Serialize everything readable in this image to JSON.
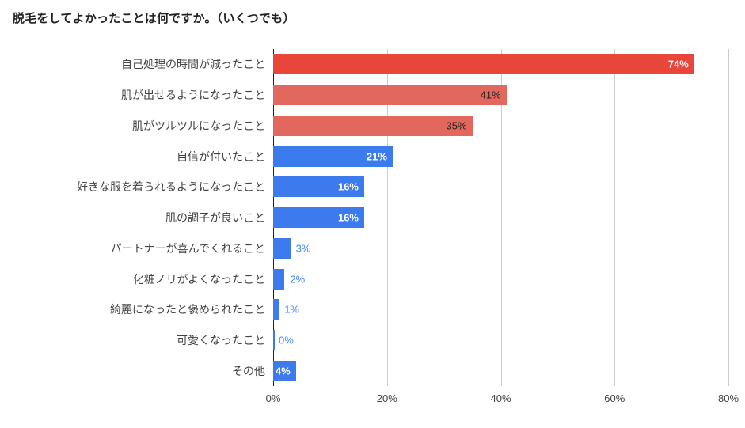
{
  "chart_data": {
    "type": "bar",
    "orientation": "horizontal",
    "title": "脱毛をしてよかったことは何ですか。（いくつでも）",
    "xlabel": "",
    "ylabel": "",
    "xlim": [
      0,
      80
    ],
    "grid": true,
    "legend_position": "none",
    "axis_color": "#212121",
    "gridline_color": "#cccccc",
    "tick_label_color": "#424242",
    "category_label_color": "#424242",
    "x_ticks": [
      {
        "value": 0,
        "label": "0%"
      },
      {
        "value": 20,
        "label": "20%"
      },
      {
        "value": 40,
        "label": "40%"
      },
      {
        "value": 60,
        "label": "60%"
      },
      {
        "value": 80,
        "label": "80%"
      }
    ],
    "bars": [
      {
        "category": "自己処理の時間が減ったこと",
        "value": 74,
        "label": "74%",
        "bar_color": "#e8463a",
        "label_color": "#ffffff",
        "label_weight": "bold",
        "label_position": "inside"
      },
      {
        "category": "肌が出せるようになったこと",
        "value": 41,
        "label": "41%",
        "bar_color": "#e2685d",
        "label_color": "#212121",
        "label_weight": "normal",
        "label_position": "inside"
      },
      {
        "category": "肌がツルツルになったこと",
        "value": 35,
        "label": "35%",
        "bar_color": "#e2685d",
        "label_color": "#212121",
        "label_weight": "normal",
        "label_position": "inside"
      },
      {
        "category": "自信が付いたこと",
        "value": 21,
        "label": "21%",
        "bar_color": "#3b7bed",
        "label_color": "#ffffff",
        "label_weight": "bold",
        "label_position": "inside"
      },
      {
        "category": "好きな服を着られるようになったこと",
        "value": 16,
        "label": "16%",
        "bar_color": "#3b7bed",
        "label_color": "#ffffff",
        "label_weight": "bold",
        "label_position": "inside"
      },
      {
        "category": "肌の調子が良いこと",
        "value": 16,
        "label": "16%",
        "bar_color": "#3b7bed",
        "label_color": "#ffffff",
        "label_weight": "bold",
        "label_position": "inside"
      },
      {
        "category": "パートナーが喜んでくれること",
        "value": 3,
        "label": "3%",
        "bar_color": "#3b7bed",
        "label_color": "#4285f4",
        "label_weight": "normal",
        "label_position": "outside"
      },
      {
        "category": "化粧ノリがよくなったこと",
        "value": 2,
        "label": "2%",
        "bar_color": "#3b7bed",
        "label_color": "#4285f4",
        "label_weight": "normal",
        "label_position": "outside"
      },
      {
        "category": "綺麗になったと褒められたこと",
        "value": 1,
        "label": "1%",
        "bar_color": "#3b7bed",
        "label_color": "#4285f4",
        "label_weight": "normal",
        "label_position": "outside"
      },
      {
        "category": "可愛くなったこと",
        "value": 0,
        "label": "0%",
        "bar_color": "#3b7bed",
        "label_color": "#4285f4",
        "label_weight": "normal",
        "label_position": "outside"
      },
      {
        "category": "その他",
        "value": 4,
        "label": "4%",
        "bar_color": "#3b7bed",
        "label_color": "#ffffff",
        "label_weight": "bold",
        "label_position": "inside"
      }
    ]
  }
}
